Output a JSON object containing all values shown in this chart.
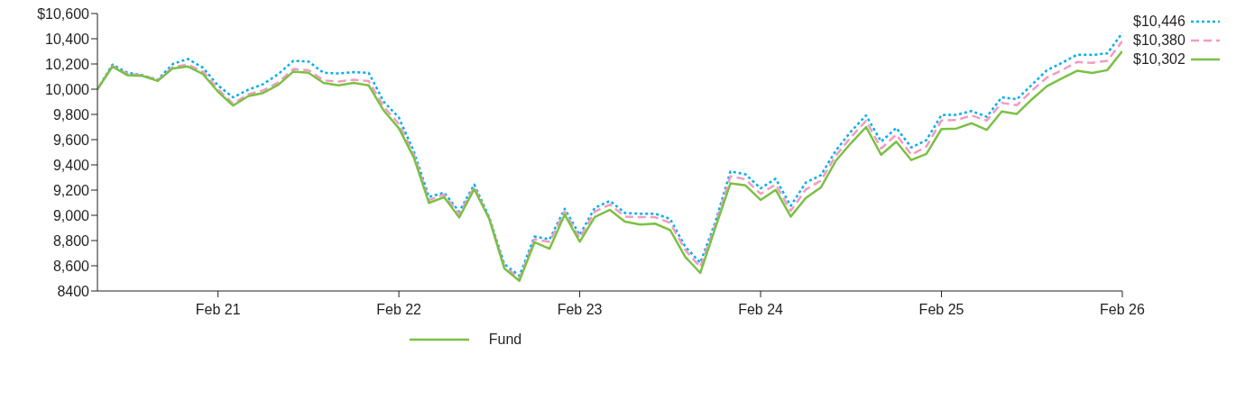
{
  "chart_data": {
    "type": "line",
    "x": [
      "2020-06",
      "2020-07",
      "2020-08",
      "2020-09",
      "2020-10",
      "2020-11",
      "2020-12",
      "2021-01",
      "2021-02",
      "2021-03",
      "2021-04",
      "2021-05",
      "2021-06",
      "2021-07",
      "2021-08",
      "2021-09",
      "2021-10",
      "2021-11",
      "2021-12",
      "2022-01",
      "2022-02",
      "2022-03",
      "2022-04",
      "2022-05",
      "2022-06",
      "2022-07",
      "2022-08",
      "2022-09",
      "2022-10",
      "2022-11",
      "2022-12",
      "2023-01",
      "2023-02",
      "2023-03",
      "2023-04",
      "2023-05",
      "2023-06",
      "2023-07",
      "2023-08",
      "2023-09",
      "2023-10",
      "2023-11",
      "2023-12",
      "2024-01",
      "2024-02",
      "2024-03",
      "2024-04",
      "2024-05",
      "2024-06",
      "2024-07",
      "2024-08",
      "2024-09",
      "2024-10",
      "2024-11",
      "2024-12",
      "2025-01",
      "2025-02",
      "2025-03",
      "2025-04",
      "2025-05",
      "2025-06",
      "2025-07",
      "2025-08",
      "2025-09",
      "2025-10",
      "2025-11",
      "2025-12",
      "2026-01",
      "2026-02"
    ],
    "series": [
      {
        "color": "#00aeef",
        "line_style": "dotted",
        "values": [
          10000,
          10195,
          10130,
          10110,
          10075,
          10200,
          10240,
          10170,
          10030,
          9935,
          9995,
          10040,
          10120,
          10225,
          10220,
          10130,
          10125,
          10135,
          10130,
          9900,
          9775,
          9504,
          9145,
          9180,
          9029,
          9244,
          8983,
          8613,
          8520,
          8832,
          8810,
          9052,
          8844,
          9060,
          9115,
          9018,
          9013,
          9013,
          8971,
          8751,
          8624,
          8948,
          9348,
          9325,
          9214,
          9290,
          9075,
          9260,
          9318,
          9515,
          9665,
          9792,
          9584,
          9693,
          9538,
          9596,
          9795,
          9797,
          9827,
          9781,
          9936,
          9920,
          10035,
          10151,
          10209,
          10274,
          10272,
          10283,
          10446
        ],
        "value_labels": [
          null,
          null,
          null,
          null,
          null,
          null,
          null,
          null,
          null,
          null,
          null,
          null,
          null,
          null,
          null,
          null,
          null,
          null,
          null,
          null,
          null,
          null,
          null,
          null,
          null,
          null,
          null,
          null,
          null,
          null,
          null,
          null,
          null,
          null,
          null,
          null,
          null,
          null,
          null,
          null,
          null,
          null,
          null,
          null,
          null,
          null,
          null,
          null,
          null,
          null,
          null,
          null,
          null,
          null,
          null,
          null,
          null,
          null,
          null,
          null,
          null,
          null,
          null,
          null,
          null,
          null,
          null,
          null,
          "$10,446"
        ]
      },
      {
        "color": "#f49ac1",
        "line_style": "dashed",
        "values": [
          10000,
          10185,
          10120,
          10110,
          10070,
          10175,
          10195,
          10140,
          10000,
          9885,
          9960,
          9990,
          10055,
          10160,
          10150,
          10070,
          10060,
          10075,
          10065,
          9860,
          9725,
          9480,
          9120,
          9165,
          9010,
          9225,
          8975,
          8595,
          8500,
          8810,
          8790,
          9030,
          8820,
          9030,
          9085,
          8990,
          8985,
          8985,
          8940,
          8725,
          8590,
          8925,
          9310,
          9285,
          9170,
          9245,
          9035,
          9205,
          9275,
          9475,
          9620,
          9750,
          9530,
          9640,
          9480,
          9545,
          9752,
          9756,
          9792,
          9751,
          9892,
          9873,
          9989,
          10093,
          10151,
          10216,
          10209,
          10225,
          10380
        ],
        "value_labels": [
          null,
          null,
          null,
          null,
          null,
          null,
          null,
          null,
          null,
          null,
          null,
          null,
          null,
          null,
          null,
          null,
          null,
          null,
          null,
          null,
          null,
          null,
          null,
          null,
          null,
          null,
          null,
          null,
          null,
          null,
          null,
          null,
          null,
          null,
          null,
          null,
          null,
          null,
          null,
          null,
          null,
          null,
          null,
          null,
          null,
          null,
          null,
          null,
          null,
          null,
          null,
          null,
          null,
          null,
          null,
          null,
          null,
          null,
          null,
          null,
          null,
          null,
          null,
          null,
          null,
          null,
          null,
          null,
          "$10,380"
        ]
      },
      {
        "name": "Fund",
        "color": "#7ac143",
        "line_style": "solid",
        "values": [
          10000,
          10180,
          10110,
          10105,
          10065,
          10165,
          10180,
          10120,
          9980,
          9870,
          9945,
          9970,
          10035,
          10140,
          10130,
          10050,
          10030,
          10050,
          10030,
          9830,
          9690,
          9456,
          9098,
          9144,
          8983,
          9207,
          8971,
          8578,
          8481,
          8786,
          8735,
          9006,
          8791,
          8987,
          9043,
          8950,
          8927,
          8934,
          8883,
          8671,
          8543,
          8902,
          9254,
          9237,
          9122,
          9202,
          8990,
          9138,
          9221,
          9434,
          9573,
          9700,
          9480,
          9584,
          9438,
          9487,
          9684,
          9688,
          9730,
          9677,
          9823,
          9804,
          9920,
          10024,
          10086,
          10146,
          10128,
          10151,
          10302
        ],
        "value_labels": [
          null,
          null,
          null,
          null,
          null,
          null,
          null,
          null,
          null,
          null,
          null,
          null,
          null,
          null,
          null,
          null,
          null,
          null,
          null,
          null,
          null,
          null,
          null,
          null,
          null,
          null,
          null,
          null,
          null,
          null,
          null,
          null,
          null,
          null,
          null,
          null,
          null,
          null,
          null,
          null,
          null,
          null,
          null,
          null,
          null,
          null,
          null,
          null,
          null,
          null,
          null,
          null,
          null,
          null,
          null,
          null,
          null,
          null,
          null,
          null,
          null,
          null,
          null,
          null,
          null,
          null,
          null,
          null,
          "$10,302"
        ]
      }
    ],
    "xlim": [
      "2020-06",
      "2026-02"
    ],
    "xticks": [
      {
        "value": "2021-02",
        "label": "Feb 21"
      },
      {
        "value": "2022-02",
        "label": "Feb 22"
      },
      {
        "value": "2023-02",
        "label": "Feb 23"
      },
      {
        "value": "2024-02",
        "label": "Feb 24"
      },
      {
        "value": "2025-02",
        "label": "Feb 25"
      },
      {
        "value": "2026-02",
        "label": "Feb 26"
      }
    ],
    "ylim": [
      8400,
      10600
    ],
    "yticks": [
      8400,
      {
        "value": 8600,
        "label": "8,600"
      },
      {
        "value": 8800,
        "label": "8,800"
      },
      {
        "value": 9000,
        "label": "9,000"
      },
      {
        "value": 9200,
        "label": "9,200"
      },
      {
        "value": 9400,
        "label": "9,400"
      },
      {
        "value": 9600,
        "label": "9,600"
      },
      {
        "value": 9800,
        "label": "9,800"
      },
      {
        "value": 10000,
        "label": "10,000"
      },
      {
        "value": 10200,
        "label": "10,200"
      },
      {
        "value": 10400,
        "label": "10,400"
      },
      {
        "value": 10600,
        "label": "$10,600"
      }
    ],
    "grid": false,
    "legend": "bottom",
    "marker": "none"
  }
}
